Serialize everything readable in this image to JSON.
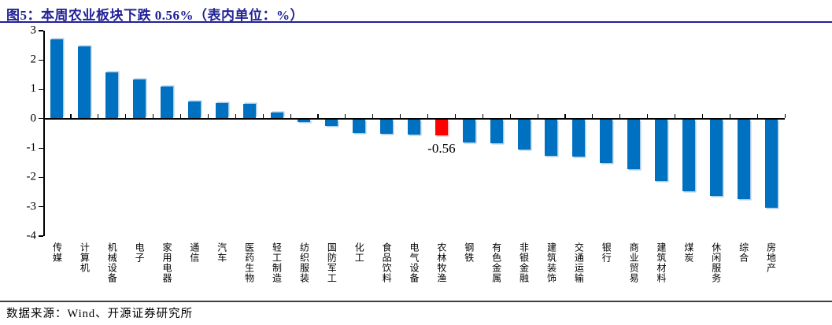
{
  "title": {
    "text": "图5：本周农业板块下跌 0.56%（表内单位：%）"
  },
  "footer": {
    "text": "数据来源：Wind、开源证券研究所"
  },
  "colors": {
    "title": "#222298",
    "title_rule": "#222298",
    "footer_rule": "#404040",
    "bar": "#0070C0",
    "bar_edge": "#A8CBEA",
    "highlight": "#FF0000",
    "highlight_edge": "#FFB3B3",
    "axis": "#000000"
  },
  "chart_data": {
    "type": "bar",
    "title": "图5：本周农业板块下跌 0.56%（表内单位：%）",
    "xlabel": "",
    "ylabel": "",
    "unit": "%",
    "grid": false,
    "legend": null,
    "ylim": [
      -4,
      3
    ],
    "yticks": [
      3,
      2,
      1,
      0,
      -1,
      -2,
      -3,
      -4
    ],
    "categories": [
      "传媒",
      "计算机",
      "机械设备",
      "电子",
      "家用电器",
      "通信",
      "汽车",
      "医药生物",
      "轻工制造",
      "纺织服装",
      "国防军工",
      "化工",
      "食品饮料",
      "电气设备",
      "农林牧渔",
      "钢铁",
      "有色金属",
      "非银金融",
      "建筑装饰",
      "交通运输",
      "银行",
      "商业贸易",
      "建筑材料",
      "煤炭",
      "休闲服务",
      "综合",
      "房地产"
    ],
    "values": [
      2.71,
      2.47,
      1.57,
      1.33,
      1.08,
      0.59,
      0.52,
      0.5,
      0.2,
      -0.1,
      -0.22,
      -0.47,
      -0.5,
      -0.53,
      -0.56,
      -0.78,
      -0.82,
      -1.03,
      -1.24,
      -1.28,
      -1.5,
      -1.7,
      -2.1,
      -2.46,
      -2.62,
      -2.73,
      -3.02
    ],
    "highlight_category": "农林牧渔",
    "annotation": {
      "text": "-0.56",
      "category": "农林牧渔"
    }
  }
}
